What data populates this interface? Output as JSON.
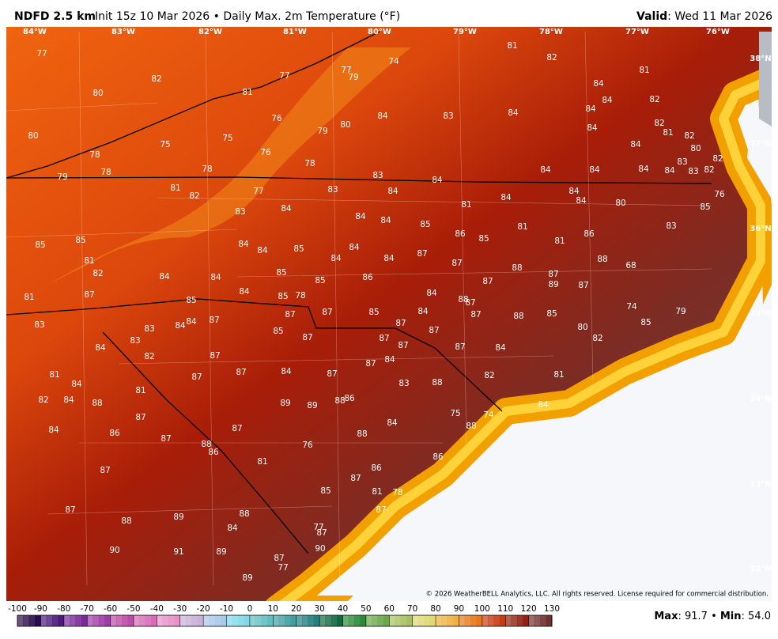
{
  "header": {
    "model": "NDFD 2.5 km",
    "init": "Init 15z 10 Mar 2026 • Daily Max. 2m Temperature (°F)",
    "valid_label": "Valid",
    "valid_date": ": Wed 11 Mar 2026"
  },
  "map": {
    "longitudes": [
      "84°W",
      "83°W",
      "82°W",
      "81°W",
      "80°W",
      "79°W",
      "78°W",
      "77°W",
      "76°W"
    ],
    "latitudes": [
      "38°N",
      "37°N",
      "36°N",
      "35°N",
      "34°N",
      "33°N",
      "32°N"
    ],
    "stations": [
      77,
      82,
      80,
      81,
      77,
      77,
      79,
      74,
      81,
      82,
      81,
      84,
      84,
      84,
      82,
      80,
      76,
      75,
      75,
      79,
      80,
      84,
      83,
      84,
      84,
      82,
      81,
      82,
      80,
      84,
      78,
      76,
      78,
      78,
      78,
      79,
      83,
      84,
      84,
      84,
      84,
      84,
      83,
      83,
      82,
      82,
      81,
      82,
      77,
      83,
      84,
      84,
      84,
      84,
      80,
      76,
      83,
      84,
      84,
      84,
      81,
      85,
      85,
      81,
      83,
      85,
      86,
      85,
      86,
      81,
      85,
      84,
      84,
      85,
      84,
      84,
      84,
      87,
      87,
      88,
      88,
      68,
      81,
      82,
      84,
      84,
      85,
      85,
      86,
      87,
      87,
      89,
      87,
      84,
      84,
      85,
      78,
      81,
      87,
      88,
      87,
      84,
      85,
      87,
      85,
      87,
      87,
      88,
      85,
      74,
      79,
      83,
      83,
      84,
      84,
      87,
      87,
      87,
      80,
      85,
      85,
      87,
      87,
      87,
      87,
      84,
      82,
      83,
      82,
      84,
      87,
      87,
      84,
      84,
      87,
      87,
      82,
      81,
      81,
      84,
      87,
      88,
      83,
      81,
      82,
      84,
      88,
      89,
      89,
      88,
      86,
      75,
      74,
      84,
      87,
      87,
      84,
      84,
      86,
      87,
      88,
      86,
      88,
      76,
      88,
      81,
      86,
      86,
      87,
      87,
      85,
      81,
      78,
      87,
      87,
      88,
      88,
      89,
      84,
      77,
      87,
      90,
      91,
      89,
      87,
      77,
      90,
      89
    ],
    "copyright": "© 2026 WeatherBELL Analytics, LLC. All rights reserved. License required for commercial distribution."
  },
  "colorbar": {
    "ticks": [
      -100,
      -90,
      -80,
      -70,
      -60,
      -50,
      -40,
      -30,
      -20,
      -10,
      0,
      10,
      20,
      30,
      40,
      50,
      60,
      70,
      80,
      90,
      100,
      110,
      120,
      130
    ]
  },
  "stats": {
    "max_label": "Max",
    "max": ": 91.7 • ",
    "min_label": "Min",
    "min": ": 54.0"
  }
}
